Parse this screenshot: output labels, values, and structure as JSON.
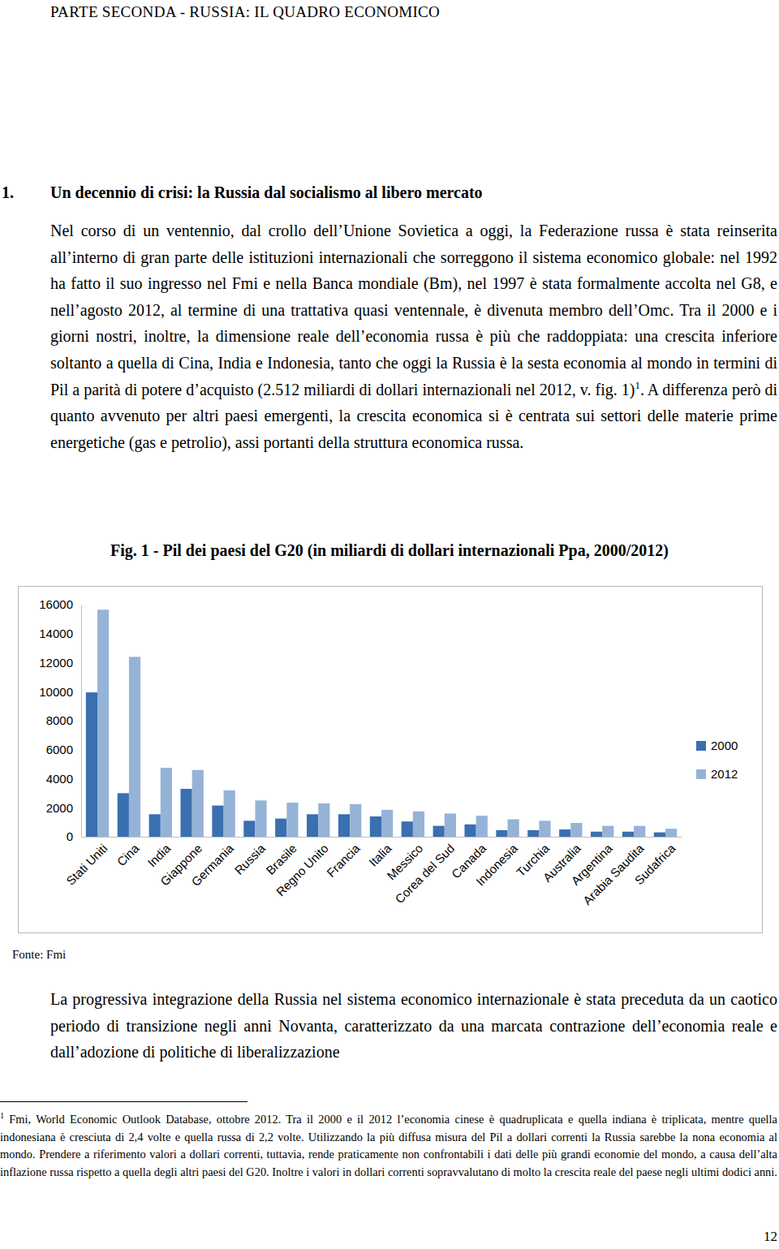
{
  "header": {
    "title": "PARTE SECONDA - RUSSIA: IL QUADRO ECONOMICO"
  },
  "section": {
    "number": "1.",
    "title": "Un decennio di crisi: la Russia dal socialismo al libero mercato"
  },
  "paragraph_1": {
    "before": "Nel corso di un ventennio, dal crollo dell’Unione Sovietica a oggi, la Federazione russa è stata reinserita all’interno di gran parte delle istituzioni internazionali che sorreggono il sistema economico globale: nel 1992 ha fatto il suo ingresso nel Fmi e nella Banca mondiale (Bm), nel 1997 è stata formalmente accolta nel G8, e nell’agosto 2012, al termine di una trattativa quasi ventennale, è divenuta membro dell’Omc. Tra il 2000 e i giorni nostri, inoltre, la dimensione reale dell’economia russa è più che raddoppiata: una crescita inferiore soltanto a quella di Cina, India e Indonesia, tanto che oggi la Russia è la sesta economia al mondo in termini di Pil a parità di potere d’acquisto (2.512 miliardi di dollari internazionali nel 2012, v. fig. 1)",
    "note_ref": "1",
    "after": ". A differenza però di quanto avvenuto per altri paesi emergenti, la crescita economica si è centrata sui settori delle materie prime energetiche (gas e petrolio), assi portanti della struttura economica russa."
  },
  "chart_data": {
    "type": "bar",
    "title": "Fig. 1 - Pil dei paesi del G20 (in miliardi di dollari internazionali Ppa, 2000/2012)",
    "categories": [
      "Stati Uniti",
      "Cina",
      "India",
      "Giappone",
      "Germania",
      "Russia",
      "Brasile",
      "Regno Unito",
      "Francia",
      "Italia",
      "Messico",
      "Corea del Sud",
      "Canada",
      "Indonesia",
      "Turchia",
      "Australia",
      "Argentina",
      "Arabia Saudita",
      "Sudafrica"
    ],
    "series": [
      {
        "name": "2000",
        "color": "#3a6fb0",
        "values": [
          9950,
          3000,
          1550,
          3300,
          2150,
          1100,
          1250,
          1550,
          1550,
          1400,
          1050,
          750,
          850,
          450,
          450,
          500,
          350,
          350,
          300
        ]
      },
      {
        "name": "2012",
        "color": "#95b3d7",
        "values": [
          15650,
          12400,
          4750,
          4600,
          3200,
          2500,
          2350,
          2300,
          2250,
          1850,
          1750,
          1600,
          1450,
          1200,
          1100,
          950,
          750,
          750,
          550
        ]
      }
    ],
    "ylim": [
      0,
      16000
    ],
    "yticks": [
      0,
      2000,
      4000,
      6000,
      8000,
      10000,
      12000,
      14000,
      16000
    ],
    "grid": false,
    "legend": "right"
  },
  "source": "Fonte: Fmi",
  "paragraph_2": "La progressiva integrazione della Russia nel sistema economico internazionale è stata preceduta da un caotico periodo di transizione negli anni Novanta, caratterizzato da una marcata contrazione dell’economia reale e dall’adozione di politiche di liberalizzazione",
  "footnote": {
    "number": "1",
    "text": "Fmi, World Economic Outlook Database, ottobre 2012. Tra il 2000 e il 2012 l’economia cinese è quadruplicata e quella indiana è triplicata, mentre quella indonesiana è cresciuta di 2,4 volte e quella russa di 2,2 volte. Utilizzando la più diffusa misura del Pil a dollari correnti la Russia sarebbe la nona economia al mondo. Prendere a riferimento valori a dollari correnti, tuttavia, rende praticamente non confrontabili i dati delle più grandi economie del mondo, a causa dell’alta inflazione russa rispetto a quella degli altri paesi del G20. Inoltre i valori in dollari correnti sopravvalutano di molto la crescita reale del paese negli ultimi dodici anni."
  },
  "page_number": "12"
}
